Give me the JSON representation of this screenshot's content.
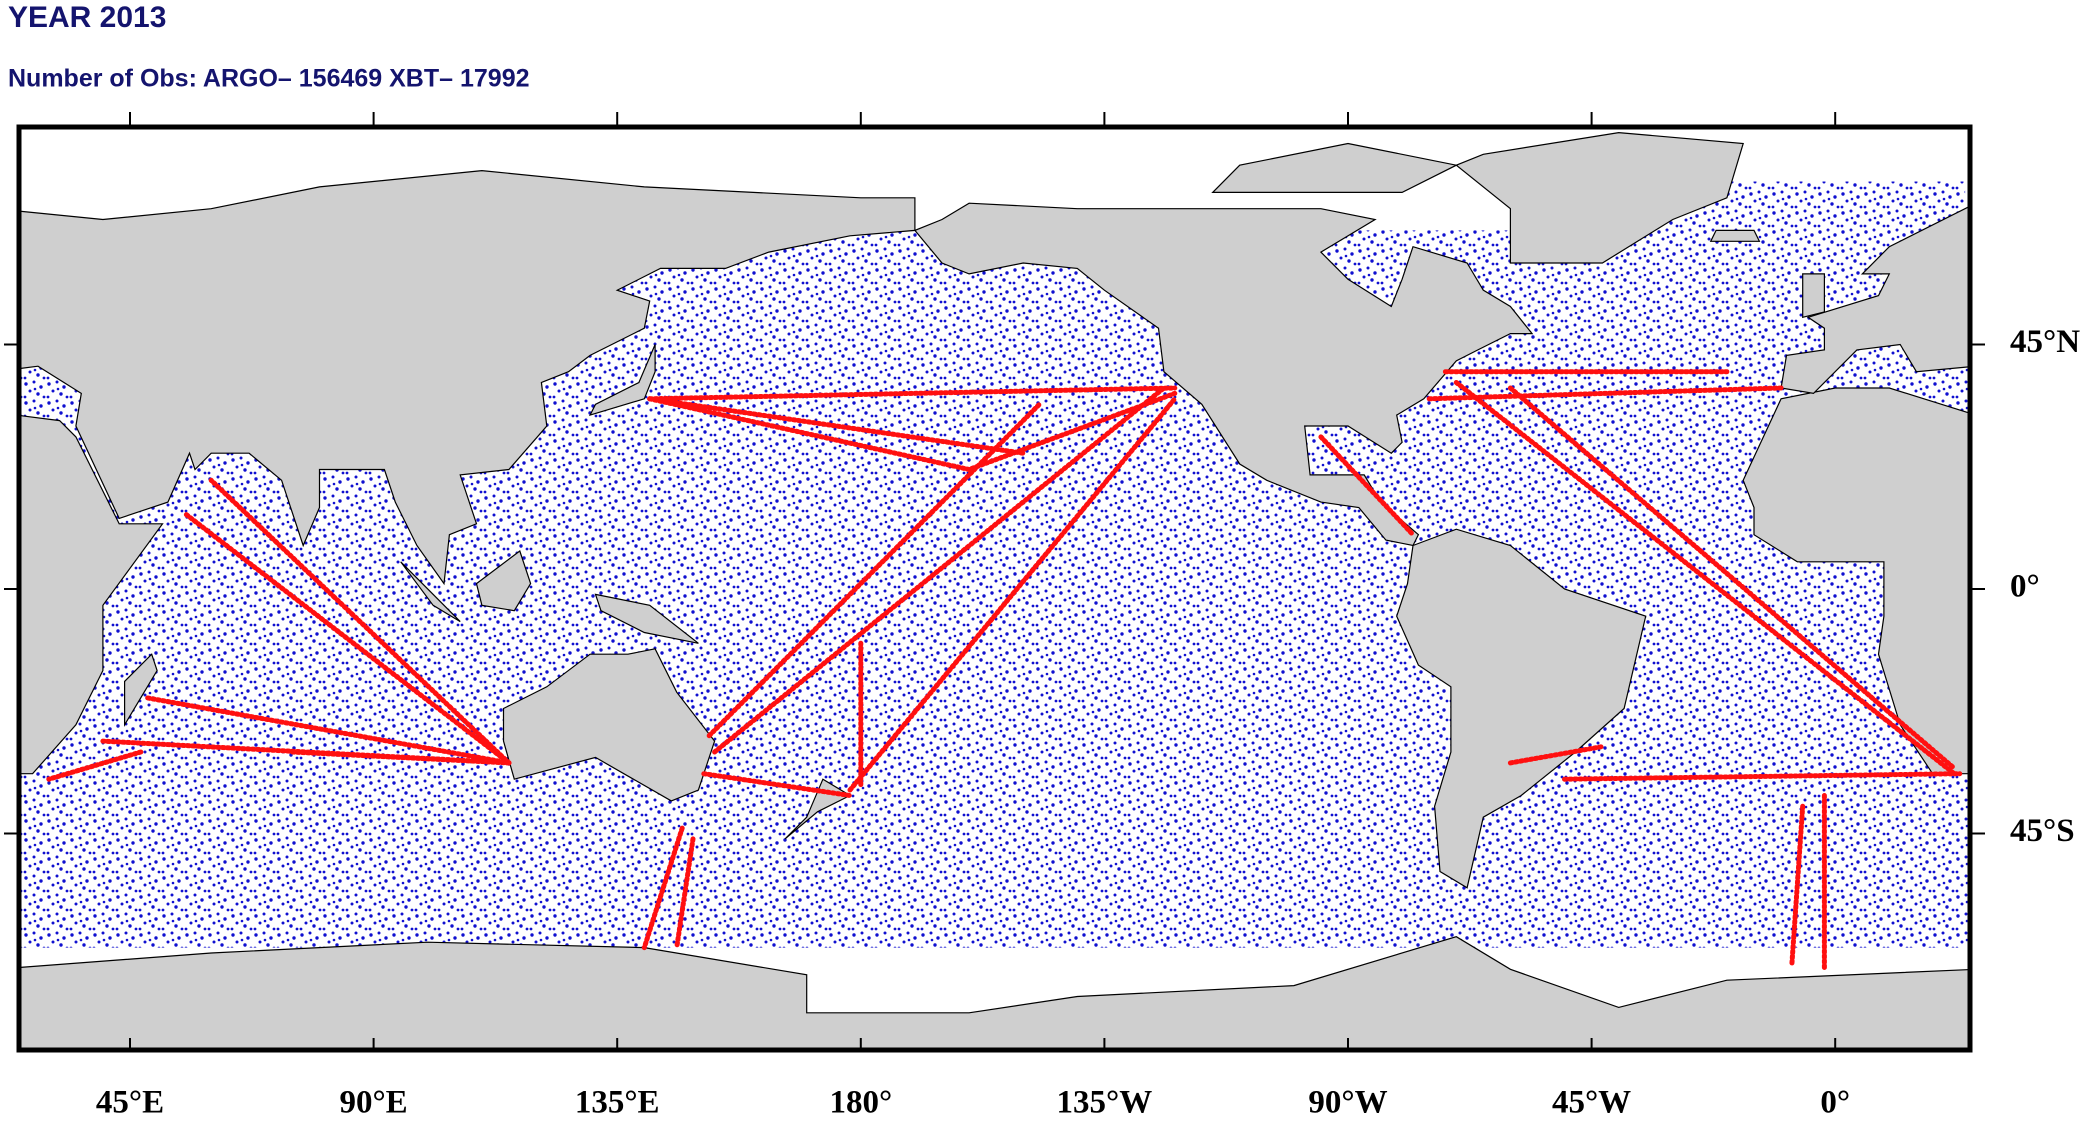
{
  "header": {
    "title": "YEAR 2013",
    "subtitle": "Number of Obs: ARGO– 156469 XBT– 17992"
  },
  "map": {
    "lon_labels": [
      "45°E",
      "90°E",
      "135°E",
      "180°",
      "135°W",
      "90°W",
      "45°W",
      "0°"
    ],
    "lat_labels": [
      "45°N",
      "0°",
      "45°S"
    ]
  }
}
